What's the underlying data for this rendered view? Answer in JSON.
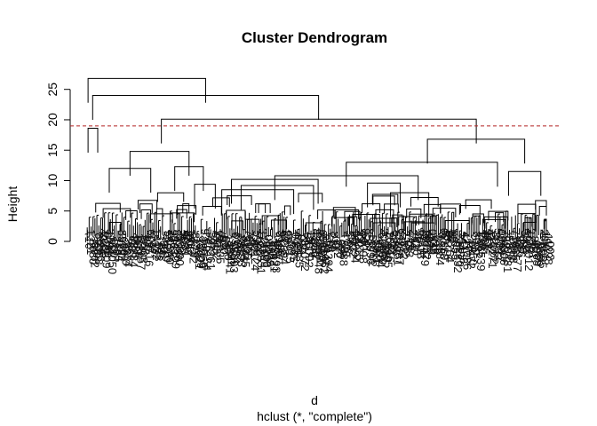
{
  "chart_data": {
    "type": "dendrogram",
    "title": "Cluster Dendrogram",
    "xlabel": "d",
    "sublabel": "hclust (*, \"complete\")",
    "ylabel": "Height",
    "ylim": [
      0,
      27
    ],
    "yticks": [
      0,
      5,
      10,
      15,
      20,
      25
    ],
    "cut_height": 19,
    "cut_line_color": "#b22222",
    "grid": false,
    "merges": [
      {
        "h": 26.8,
        "x1": 0.006,
        "x2": 0.261
      },
      {
        "h": 24.0,
        "x1": 0.016,
        "x2": 0.506
      },
      {
        "h": 20.1,
        "x1": 0.165,
        "x2": 0.848
      },
      {
        "h": 18.6,
        "x1": 0.006,
        "x2": 0.027
      },
      {
        "h": 16.8,
        "x1": 0.742,
        "x2": 0.953
      },
      {
        "h": 14.8,
        "x1": 0.097,
        "x2": 0.225
      },
      {
        "h": 13.0,
        "x1": 0.566,
        "x2": 0.894
      },
      {
        "h": 12.0,
        "x1": 0.052,
        "x2": 0.142
      },
      {
        "h": 12.3,
        "x1": 0.194,
        "x2": 0.256
      },
      {
        "h": 10.8,
        "x1": 0.411,
        "x2": 0.722
      },
      {
        "h": 10.2,
        "x1": 0.317,
        "x2": 0.505
      },
      {
        "h": 9.2,
        "x1": 0.338,
        "x2": 0.495
      },
      {
        "h": 11.5,
        "x1": 0.918,
        "x2": 0.988
      },
      {
        "h": 9.4,
        "x1": 0.237,
        "x2": 0.282
      },
      {
        "h": 8.5,
        "x1": 0.296,
        "x2": 0.452
      },
      {
        "h": 8.0,
        "x1": 0.662,
        "x2": 0.745
      },
      {
        "h": 9.6,
        "x1": 0.612,
        "x2": 0.683
      }
    ],
    "leaf_count": 240,
    "leaf_labels_visible": [
      "9",
      "9",
      "9",
      "9",
      "91",
      "9",
      "8",
      "7",
      "8",
      "7",
      "12"
    ]
  }
}
